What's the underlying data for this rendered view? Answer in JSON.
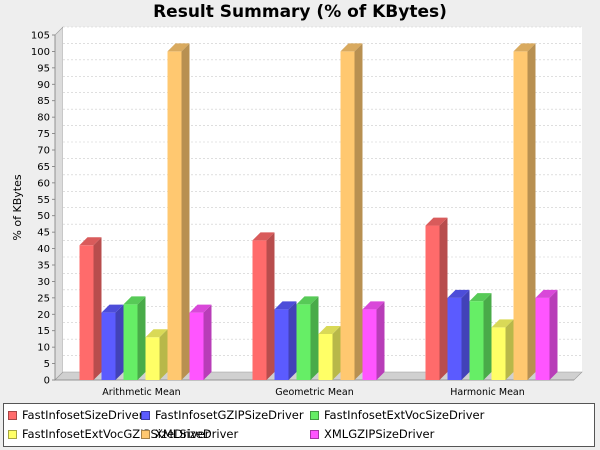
{
  "chart_data": {
    "type": "bar",
    "title": "Result Summary (% of KBytes)",
    "ylabel": "% of KBytes",
    "xlabel": "",
    "ylim": [
      0,
      105
    ],
    "ytick_step": 5,
    "grid": true,
    "legend_position": "bottom",
    "categories": [
      "Arithmetic Mean",
      "Geometric Mean",
      "Harmonic Mean"
    ],
    "series": [
      {
        "name": "FastInfosetSizeDriver",
        "color": "#ff6b6b",
        "values": [
          41,
          42.5,
          47
        ]
      },
      {
        "name": "FastInfosetGZIPSizeDriver",
        "color": "#5b5bff",
        "values": [
          20.5,
          21.5,
          25
        ]
      },
      {
        "name": "FastInfosetExtVocSizeDriver",
        "color": "#66ee66",
        "values": [
          23,
          23,
          24
        ]
      },
      {
        "name": "FastInfosetExtVocGZIPSizeDriver",
        "color": "#ffff66",
        "values": [
          13,
          14,
          16
        ]
      },
      {
        "name": "XMLSizeDriver",
        "color": "#ffc870",
        "values": [
          100,
          100,
          100
        ]
      },
      {
        "name": "XMLGZIPSizeDriver",
        "color": "#ff55ff",
        "values": [
          20.5,
          21.5,
          25
        ]
      }
    ]
  }
}
